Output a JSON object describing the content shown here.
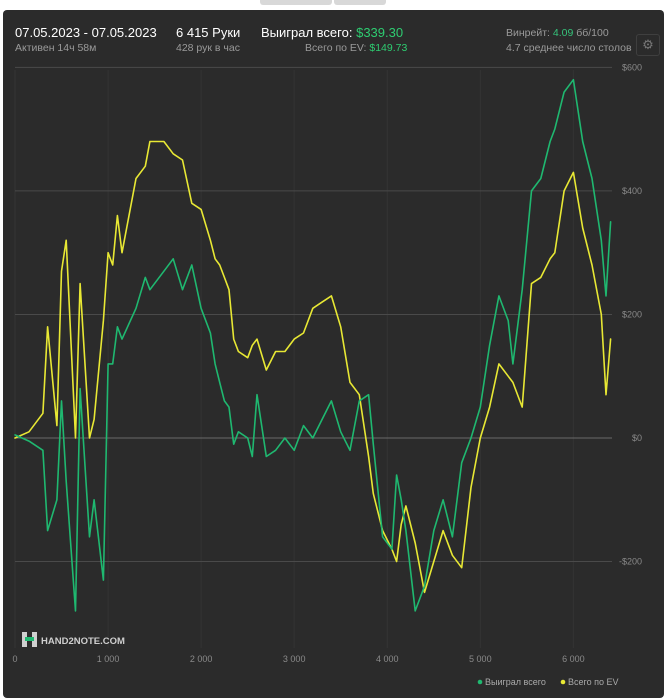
{
  "header": {
    "date_range": "07.05.2023 - 07.05.2023",
    "active_time": "Активен 14ч 58м",
    "hands": "6 415 Руки",
    "hands_per_hour": "428 рук в час",
    "won_total_label": "Выиграл всего:",
    "won_total_value": "$339.30",
    "ev_label": "Всего по EV:",
    "ev_value": "$149.73",
    "winrate_label": "Винрейт:",
    "winrate_value": "4.09",
    "winrate_unit": "бб/100",
    "avg_tables": "4.7 среднее число столов",
    "settings_icon": "gear-icon"
  },
  "watermark": "HAND2NOTE.COM",
  "colors": {
    "won": "#1fb870",
    "ev": "#e8e834",
    "background": "#2b2b2b",
    "grid": "#4a4a4a"
  },
  "chart_data": {
    "type": "line",
    "xlabel": "",
    "ylabel": "",
    "xlim": [
      0,
      6415
    ],
    "ylim": [
      -340,
      620
    ],
    "x_ticks": [
      0,
      1000,
      2000,
      3000,
      4000,
      5000,
      6000
    ],
    "x_tick_labels": [
      "0",
      "1 000",
      "2 000",
      "3 000",
      "4 000",
      "5 000",
      "6 000"
    ],
    "y_ticks": [
      600,
      400,
      200,
      0,
      -200
    ],
    "y_tick_labels": [
      "$600",
      "$400",
      "$200",
      "$0",
      "-$200"
    ],
    "grid": true,
    "legend": {
      "position": "bottom-right",
      "entries": [
        "Выиграл всего",
        "Всего по EV"
      ]
    },
    "series": [
      {
        "name": "Выиграл всего",
        "color": "#1fb870",
        "x": [
          0,
          150,
          300,
          350,
          450,
          500,
          550,
          650,
          700,
          800,
          850,
          950,
          1000,
          1050,
          1100,
          1150,
          1300,
          1400,
          1450,
          1600,
          1700,
          1800,
          1900,
          2000,
          2100,
          2150,
          2200,
          2250,
          2300,
          2350,
          2400,
          2500,
          2550,
          2600,
          2700,
          2800,
          2900,
          3000,
          3100,
          3200,
          3300,
          3400,
          3500,
          3600,
          3700,
          3800,
          3850,
          3950,
          4050,
          4100,
          4150,
          4200,
          4300,
          4400,
          4500,
          4600,
          4700,
          4800,
          4900,
          5000,
          5100,
          5200,
          5300,
          5350,
          5450,
          5550,
          5650,
          5750,
          5800,
          5900,
          6000,
          6100,
          6200,
          6300,
          6350,
          6400
        ],
        "values": [
          5,
          -5,
          -20,
          -150,
          -100,
          60,
          -70,
          -280,
          80,
          -160,
          -100,
          -230,
          120,
          120,
          180,
          160,
          210,
          260,
          240,
          270,
          290,
          240,
          280,
          210,
          170,
          120,
          90,
          60,
          50,
          -10,
          10,
          0,
          -30,
          70,
          -30,
          -20,
          0,
          -20,
          20,
          0,
          30,
          60,
          10,
          -20,
          60,
          70,
          -10,
          -160,
          -180,
          -60,
          -100,
          -150,
          -280,
          -240,
          -150,
          -100,
          -160,
          -40,
          0,
          50,
          150,
          230,
          190,
          120,
          240,
          400,
          420,
          480,
          500,
          560,
          580,
          480,
          420,
          320,
          230,
          350
        ]
      },
      {
        "name": "Всего по EV",
        "color": "#e8e834",
        "x": [
          0,
          150,
          300,
          350,
          450,
          500,
          550,
          650,
          700,
          800,
          850,
          950,
          1000,
          1050,
          1100,
          1150,
          1300,
          1400,
          1450,
          1600,
          1700,
          1800,
          1900,
          2000,
          2100,
          2150,
          2200,
          2250,
          2300,
          2350,
          2400,
          2500,
          2550,
          2600,
          2700,
          2800,
          2900,
          3000,
          3100,
          3200,
          3300,
          3400,
          3500,
          3600,
          3700,
          3800,
          3850,
          3950,
          4050,
          4100,
          4150,
          4200,
          4300,
          4400,
          4500,
          4600,
          4700,
          4800,
          4900,
          5000,
          5100,
          5200,
          5300,
          5350,
          5450,
          5550,
          5650,
          5750,
          5800,
          5900,
          6000,
          6100,
          6200,
          6300,
          6350,
          6400
        ],
        "values": [
          0,
          10,
          40,
          180,
          20,
          270,
          320,
          0,
          250,
          0,
          30,
          190,
          300,
          280,
          360,
          300,
          420,
          440,
          480,
          480,
          460,
          450,
          380,
          370,
          320,
          290,
          280,
          260,
          240,
          160,
          140,
          130,
          150,
          160,
          110,
          140,
          140,
          160,
          170,
          210,
          220,
          230,
          180,
          90,
          70,
          -30,
          -90,
          -150,
          -180,
          -200,
          -140,
          -110,
          -170,
          -250,
          -200,
          -150,
          -190,
          -210,
          -80,
          0,
          50,
          120,
          100,
          90,
          50,
          250,
          260,
          290,
          300,
          400,
          430,
          340,
          280,
          200,
          70,
          160
        ]
      }
    ]
  }
}
